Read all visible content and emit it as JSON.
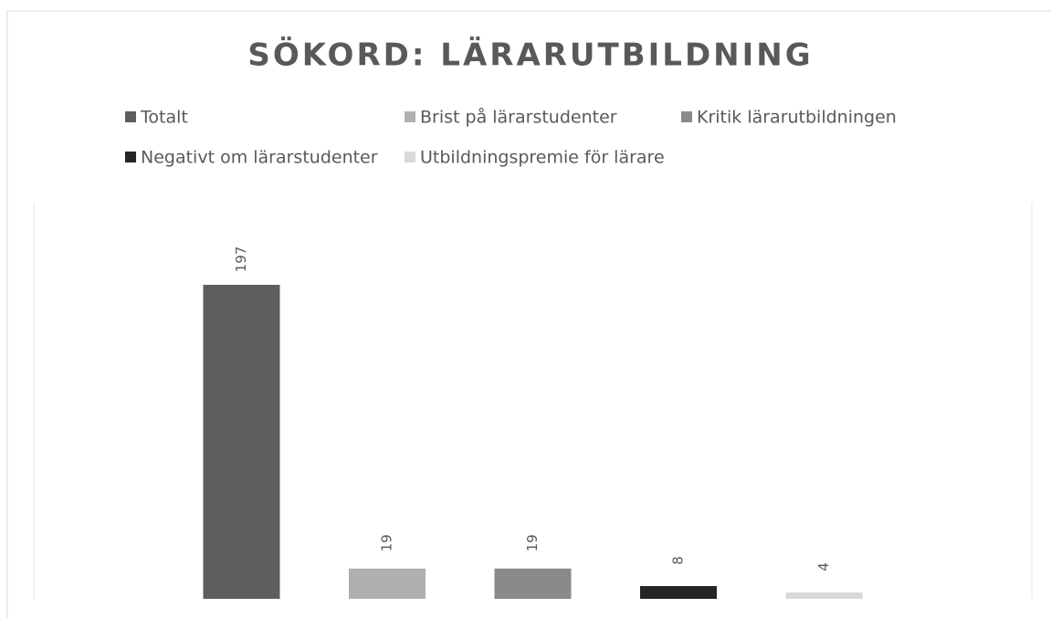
{
  "chart_data": {
    "type": "bar",
    "title": "SÖKORD: LÄRARUTBILDNING",
    "series": [
      {
        "name": "Totalt",
        "color": "#5e5e5e",
        "values": [
          197
        ]
      },
      {
        "name": "Brist på lärarstudenter",
        "color": "#b0b0b0",
        "values": [
          19
        ]
      },
      {
        "name": "Kritik lärarutbildningen",
        "color": "#8a8a8a",
        "values": [
          19
        ]
      },
      {
        "name": "Negativt om lärarstudenter",
        "color": "#262626",
        "values": [
          8
        ]
      },
      {
        "name": "Utbildningspremie för lärare",
        "color": "#d9d9d9",
        "values": [
          4
        ]
      }
    ]
  }
}
